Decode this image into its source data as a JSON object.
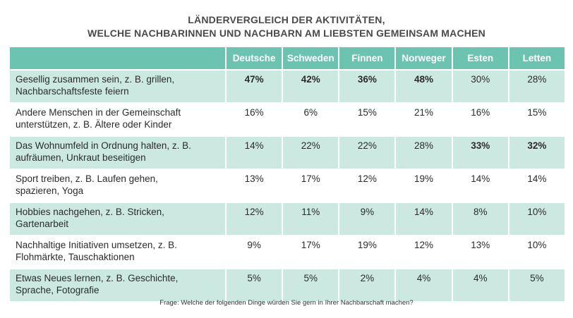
{
  "title": {
    "line1": "LÄNDERVERGLEICH DER AKTIVITÄTEN,",
    "line2": "WELCHE NACHBARINNEN UND NACHBARN AM LIEBSTEN GEMEINSAM MACHEN"
  },
  "footnote": "Frage: Welche der folgenden Dinge würden Sie gern in Ihrer Nachbarschaft machen?",
  "colors": {
    "header_bg": "#6cc4b0",
    "row_alt_bg": "#cbe9e1",
    "header_text": "#ffffff"
  },
  "chart_data": {
    "type": "table",
    "title": "LÄNDERVERGLEICH DER AKTIVITÄTEN, WELCHE NACHBARINNEN UND NACHBARN AM LIEBSTEN GEMEINSAM MACHEN",
    "columns": [
      "Deutsche",
      "Schweden",
      "Finnen",
      "Norweger",
      "Esten",
      "Letten"
    ],
    "unit": "%",
    "rows": [
      {
        "label_line1": "Gesellig zusammen sein, z. B. grillen,",
        "label_line2": "Nachbarschaftsfeste feiern",
        "values": [
          "47%",
          "42%",
          "36%",
          "48%",
          "30%",
          "28%"
        ],
        "bold": [
          true,
          true,
          true,
          true,
          false,
          false
        ]
      },
      {
        "label_line1": "Andere Menschen in der Gemeinschaft",
        "label_line2": "unterstützen, z. B. Ältere oder Kinder",
        "values": [
          "16%",
          "6%",
          "15%",
          "21%",
          "16%",
          "15%"
        ],
        "bold": [
          false,
          false,
          false,
          false,
          false,
          false
        ]
      },
      {
        "label_line1": "Das Wohnumfeld in Ordnung halten, z. B.",
        "label_line2": "aufräumen, Unkraut beseitigen",
        "values": [
          "14%",
          "22%",
          "22%",
          "28%",
          "33%",
          "32%"
        ],
        "bold": [
          false,
          false,
          false,
          false,
          true,
          true
        ]
      },
      {
        "label_line1": "Sport treiben, z. B. Laufen gehen,",
        "label_line2": "spazieren, Yoga",
        "values": [
          "13%",
          "17%",
          "12%",
          "19%",
          "14%",
          "14%"
        ],
        "bold": [
          false,
          false,
          false,
          false,
          false,
          false
        ]
      },
      {
        "label_line1": "Hobbies nachgehen, z. B. Stricken,",
        "label_line2": "Gartenarbeit",
        "values": [
          "12%",
          "11%",
          "9%",
          "14%",
          "8%",
          "10%"
        ],
        "bold": [
          false,
          false,
          false,
          false,
          false,
          false
        ]
      },
      {
        "label_line1": "Nachhaltige Initiativen umsetzen, z. B.",
        "label_line2": "Flohmärkte, Tauschaktionen",
        "values": [
          "9%",
          "17%",
          "19%",
          "12%",
          "13%",
          "10%"
        ],
        "bold": [
          false,
          false,
          false,
          false,
          false,
          false
        ]
      },
      {
        "label_line1": "Etwas Neues lernen, z. B. Geschichte,",
        "label_line2": "Sprache, Fotografie",
        "values": [
          "5%",
          "5%",
          "2%",
          "4%",
          "4%",
          "5%"
        ],
        "bold": [
          false,
          false,
          false,
          false,
          false,
          false
        ]
      }
    ]
  }
}
